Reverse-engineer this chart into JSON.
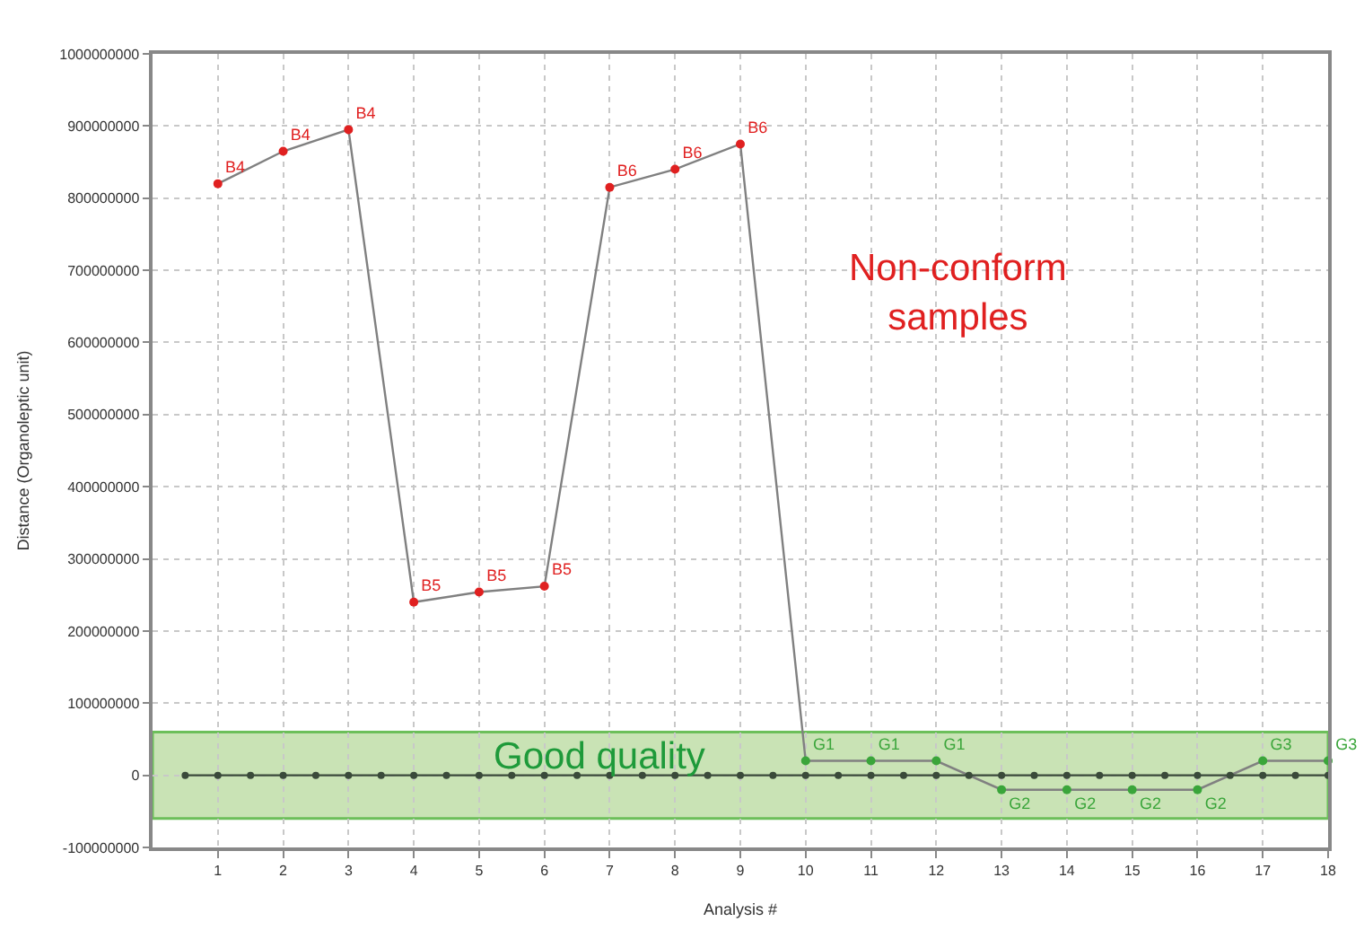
{
  "chart_data": {
    "type": "line",
    "xlabel": "Analysis #",
    "ylabel": "Distance (Organoleptic unit)",
    "x": [
      1,
      2,
      3,
      4,
      5,
      6,
      7,
      8,
      9,
      10,
      11,
      12,
      13,
      14,
      15,
      16,
      17,
      18
    ],
    "series": [
      {
        "color": "#808080",
        "marker": "circle",
        "values": [
          820000000,
          865000000,
          895000000,
          240000000,
          254000000,
          262000000,
          815000000,
          840000000,
          875000000,
          20000000,
          20000000,
          20000000,
          -20000000,
          -20000000,
          -20000000,
          -20000000,
          20000000,
          20000000
        ],
        "colors": [
          "#e02020",
          "#e02020",
          "#e02020",
          "#e02020",
          "#e02020",
          "#e02020",
          "#e02020",
          "#e02020",
          "#e02020",
          "#3aa53a",
          "#3aa53a",
          "#3aa53a",
          "#3aa53a",
          "#3aa53a",
          "#3aa53a",
          "#3aa53a",
          "#3aa53a",
          "#3aa53a"
        ],
        "value_labels": [
          "B4",
          "B4",
          "B4",
          "B5",
          "B5",
          "B5",
          "B6",
          "B6",
          "B6",
          "G1",
          "G1",
          "G1",
          "G2",
          "G2",
          "G2",
          "G2",
          "G3",
          "G3"
        ]
      },
      {
        "color": "#3a4a3a",
        "marker": "circle",
        "x": [
          0.5,
          1,
          1.5,
          2,
          2.5,
          3,
          3.5,
          4,
          4.5,
          5,
          5.5,
          6,
          6.5,
          7,
          7.5,
          8,
          8.5,
          9,
          9.5,
          10,
          10.5,
          11,
          11.5,
          12,
          12.5,
          13,
          13.5,
          14,
          14.5,
          15,
          15.5,
          16,
          16.5,
          17,
          17.5,
          18
        ],
        "values": [
          0,
          0,
          0,
          0,
          0,
          0,
          0,
          0,
          0,
          0,
          0,
          0,
          0,
          0,
          0,
          0,
          0,
          0,
          0,
          0,
          0,
          0,
          0,
          0,
          0,
          0,
          0,
          0,
          0,
          0,
          0,
          0,
          0,
          0,
          0,
          0
        ]
      }
    ],
    "xlim": [
      0,
      18
    ],
    "xticks": [
      1,
      2,
      3,
      4,
      5,
      6,
      7,
      8,
      9,
      10,
      11,
      12,
      13,
      14,
      15,
      16,
      17,
      18
    ],
    "ylim": [
      -100000000,
      1000000000
    ],
    "yticks": [
      -100000000,
      0,
      100000000,
      200000000,
      300000000,
      400000000,
      500000000,
      600000000,
      700000000,
      800000000,
      900000000,
      1000000000
    ],
    "bands": [
      {
        "axis": "y",
        "from": -60000000,
        "to": 60000000,
        "label": "Good quality",
        "color": "#c9e3b5"
      }
    ],
    "annotations": [
      "Non-conform\nsamples"
    ],
    "grid": true
  }
}
